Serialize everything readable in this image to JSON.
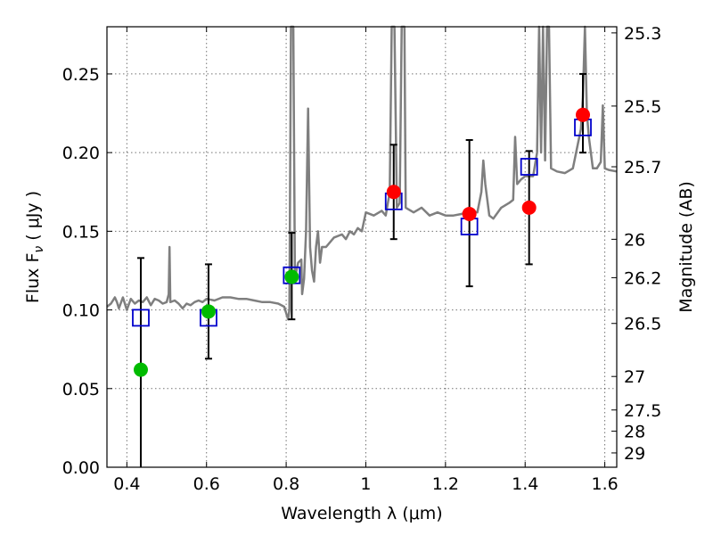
{
  "chart_data": {
    "type": "scatter",
    "xlabel": "Wavelength  λ (μm)",
    "ylabel_left": "Flux  F",
    "ylabel_left_sub": "ν",
    "ylabel_left_unit": "  ( μJy )",
    "ylabel_right": "Magnitude (AB)",
    "xlim": [
      0.35,
      1.63
    ],
    "ylim": [
      0.0,
      0.28
    ],
    "grid": true,
    "x_ticks": [
      0.4,
      0.6,
      0.8,
      1.0,
      1.2,
      1.4,
      1.6
    ],
    "x_tick_labels": [
      "0.4",
      "0.6",
      "0.8",
      "1",
      "1.2",
      "1.4",
      "1.6"
    ],
    "y_ticks": [
      0.0,
      0.05,
      0.1,
      0.15,
      0.2,
      0.25
    ],
    "y_tick_labels": [
      "0.00",
      "0.05",
      "0.10",
      "0.15",
      "0.20",
      "0.25"
    ],
    "mag_ticks": [
      {
        "label": "25.3",
        "flux": 0.2761
      },
      {
        "label": "25.5",
        "flux": 0.2296
      },
      {
        "label": "25.7",
        "flux": 0.191
      },
      {
        "label": "26",
        "flux": 0.1449
      },
      {
        "label": "26.2",
        "flux": 0.1205
      },
      {
        "label": "26.5",
        "flux": 0.0914
      },
      {
        "label": "27",
        "flux": 0.0577
      },
      {
        "label": "27.5",
        "flux": 0.0364
      },
      {
        "label": "28",
        "flux": 0.0229
      },
      {
        "label": "29",
        "flux": 0.0091
      }
    ],
    "colors": {
      "spectrum": "#7f7f7f",
      "model_square": "#0000cc",
      "green_point": "#00bb00",
      "red_point": "#ff0000",
      "errorbar": "#000000"
    },
    "errorbars": [
      {
        "x": 0.435,
        "low": 0.0,
        "high": 0.133
      },
      {
        "x": 0.605,
        "low": 0.069,
        "high": 0.129
      },
      {
        "x": 0.814,
        "low": 0.094,
        "high": 0.149
      },
      {
        "x": 1.07,
        "low": 0.145,
        "high": 0.205
      },
      {
        "x": 1.26,
        "low": 0.115,
        "high": 0.208
      },
      {
        "x": 1.41,
        "low": 0.129,
        "high": 0.201
      },
      {
        "x": 1.545,
        "low": 0.2,
        "high": 0.25
      }
    ],
    "green_points": [
      {
        "x": 0.435,
        "y": 0.062
      },
      {
        "x": 0.605,
        "y": 0.099
      },
      {
        "x": 0.814,
        "y": 0.121
      }
    ],
    "red_points": [
      {
        "x": 1.07,
        "y": 0.175
      },
      {
        "x": 1.26,
        "y": 0.161
      },
      {
        "x": 1.41,
        "y": 0.165
      },
      {
        "x": 1.545,
        "y": 0.224
      }
    ],
    "model_squares": [
      {
        "x": 0.435,
        "y": 0.095
      },
      {
        "x": 0.605,
        "y": 0.095
      },
      {
        "x": 0.814,
        "y": 0.122
      },
      {
        "x": 1.07,
        "y": 0.169
      },
      {
        "x": 1.26,
        "y": 0.153
      },
      {
        "x": 1.41,
        "y": 0.191
      },
      {
        "x": 1.545,
        "y": 0.216
      }
    ],
    "spectrum": [
      [
        0.35,
        0.102
      ],
      [
        0.36,
        0.104
      ],
      [
        0.37,
        0.108
      ],
      [
        0.375,
        0.105
      ],
      [
        0.38,
        0.101
      ],
      [
        0.39,
        0.108
      ],
      [
        0.4,
        0.1
      ],
      [
        0.41,
        0.107
      ],
      [
        0.42,
        0.104
      ],
      [
        0.43,
        0.106
      ],
      [
        0.44,
        0.105
      ],
      [
        0.45,
        0.108
      ],
      [
        0.46,
        0.103
      ],
      [
        0.47,
        0.107
      ],
      [
        0.48,
        0.106
      ],
      [
        0.49,
        0.104
      ],
      [
        0.5,
        0.105
      ],
      [
        0.505,
        0.11
      ],
      [
        0.507,
        0.14
      ],
      [
        0.509,
        0.105
      ],
      [
        0.52,
        0.106
      ],
      [
        0.53,
        0.104
      ],
      [
        0.54,
        0.101
      ],
      [
        0.55,
        0.104
      ],
      [
        0.56,
        0.103
      ],
      [
        0.57,
        0.105
      ],
      [
        0.58,
        0.106
      ],
      [
        0.59,
        0.105
      ],
      [
        0.6,
        0.107
      ],
      [
        0.62,
        0.106
      ],
      [
        0.64,
        0.108
      ],
      [
        0.66,
        0.108
      ],
      [
        0.68,
        0.107
      ],
      [
        0.7,
        0.107
      ],
      [
        0.72,
        0.106
      ],
      [
        0.74,
        0.105
      ],
      [
        0.76,
        0.105
      ],
      [
        0.78,
        0.104
      ],
      [
        0.795,
        0.102
      ],
      [
        0.8,
        0.098
      ],
      [
        0.805,
        0.094
      ],
      [
        0.808,
        0.1
      ],
      [
        0.812,
        0.28
      ],
      [
        0.818,
        0.28
      ],
      [
        0.822,
        0.12
      ],
      [
        0.83,
        0.13
      ],
      [
        0.838,
        0.132
      ],
      [
        0.84,
        0.11
      ],
      [
        0.845,
        0.12
      ],
      [
        0.85,
        0.15
      ],
      [
        0.855,
        0.228
      ],
      [
        0.86,
        0.14
      ],
      [
        0.865,
        0.125
      ],
      [
        0.87,
        0.118
      ],
      [
        0.875,
        0.14
      ],
      [
        0.88,
        0.15
      ],
      [
        0.885,
        0.13
      ],
      [
        0.89,
        0.14
      ],
      [
        0.9,
        0.14
      ],
      [
        0.92,
        0.146
      ],
      [
        0.94,
        0.148
      ],
      [
        0.95,
        0.145
      ],
      [
        0.96,
        0.15
      ],
      [
        0.97,
        0.148
      ],
      [
        0.98,
        0.152
      ],
      [
        0.99,
        0.15
      ],
      [
        1.0,
        0.162
      ],
      [
        1.02,
        0.16
      ],
      [
        1.04,
        0.163
      ],
      [
        1.05,
        0.16
      ],
      [
        1.06,
        0.175
      ],
      [
        1.065,
        0.28
      ],
      [
        1.072,
        0.28
      ],
      [
        1.078,
        0.165
      ],
      [
        1.085,
        0.168
      ],
      [
        1.09,
        0.28
      ],
      [
        1.097,
        0.28
      ],
      [
        1.1,
        0.165
      ],
      [
        1.12,
        0.162
      ],
      [
        1.14,
        0.165
      ],
      [
        1.16,
        0.16
      ],
      [
        1.18,
        0.162
      ],
      [
        1.2,
        0.16
      ],
      [
        1.22,
        0.16
      ],
      [
        1.24,
        0.161
      ],
      [
        1.26,
        0.163
      ],
      [
        1.28,
        0.162
      ],
      [
        1.29,
        0.175
      ],
      [
        1.295,
        0.195
      ],
      [
        1.3,
        0.18
      ],
      [
        1.31,
        0.16
      ],
      [
        1.32,
        0.158
      ],
      [
        1.34,
        0.165
      ],
      [
        1.36,
        0.168
      ],
      [
        1.37,
        0.17
      ],
      [
        1.375,
        0.21
      ],
      [
        1.38,
        0.18
      ],
      [
        1.39,
        0.183
      ],
      [
        1.4,
        0.185
      ],
      [
        1.42,
        0.185
      ],
      [
        1.43,
        0.2
      ],
      [
        1.435,
        0.28
      ],
      [
        1.44,
        0.2
      ],
      [
        1.445,
        0.28
      ],
      [
        1.45,
        0.195
      ],
      [
        1.455,
        0.28
      ],
      [
        1.46,
        0.28
      ],
      [
        1.465,
        0.19
      ],
      [
        1.48,
        0.188
      ],
      [
        1.5,
        0.187
      ],
      [
        1.52,
        0.19
      ],
      [
        1.54,
        0.215
      ],
      [
        1.545,
        0.235
      ],
      [
        1.55,
        0.28
      ],
      [
        1.555,
        0.225
      ],
      [
        1.56,
        0.21
      ],
      [
        1.57,
        0.19
      ],
      [
        1.58,
        0.19
      ],
      [
        1.59,
        0.194
      ],
      [
        1.595,
        0.23
      ],
      [
        1.6,
        0.19
      ],
      [
        1.61,
        0.189
      ],
      [
        1.63,
        0.188
      ]
    ]
  }
}
